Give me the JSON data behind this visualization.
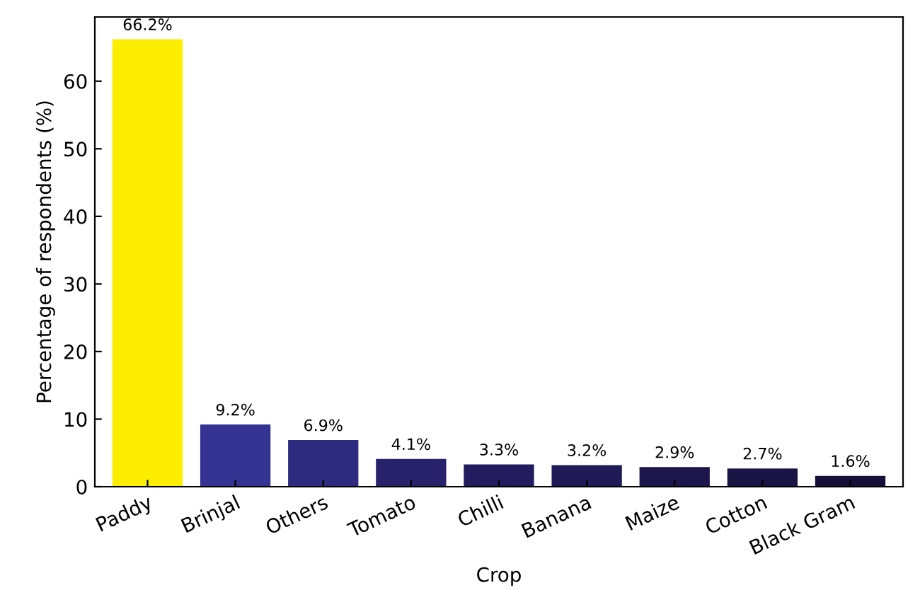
{
  "chart_data": {
    "type": "bar",
    "xlabel": "Crop",
    "ylabel": "Percentage of respondents (%)",
    "categories": [
      "Paddy",
      "Brinjal",
      "Others",
      "Tomato",
      "Chilli",
      "Banana",
      "Maize",
      "Cotton",
      "Black Gram"
    ],
    "values": [
      66.2,
      9.2,
      6.9,
      4.1,
      3.3,
      3.2,
      2.9,
      2.7,
      1.6
    ],
    "colors": [
      "#fdee00",
      "#343392",
      "#2d2a7f",
      "#28226c",
      "#231d5f",
      "#201a56",
      "#1d164c",
      "#1a1444",
      "#161038"
    ],
    "value_labels": [
      "66.2%",
      "9.2%",
      "6.9%",
      "4.1%",
      "3.3%",
      "3.2%",
      "2.9%",
      "2.7%",
      "1.6%"
    ],
    "ylim": [
      0,
      69.5
    ],
    "yticks": [
      0,
      10,
      20,
      30,
      40,
      50,
      60
    ],
    "grid": false,
    "legend": false
  }
}
